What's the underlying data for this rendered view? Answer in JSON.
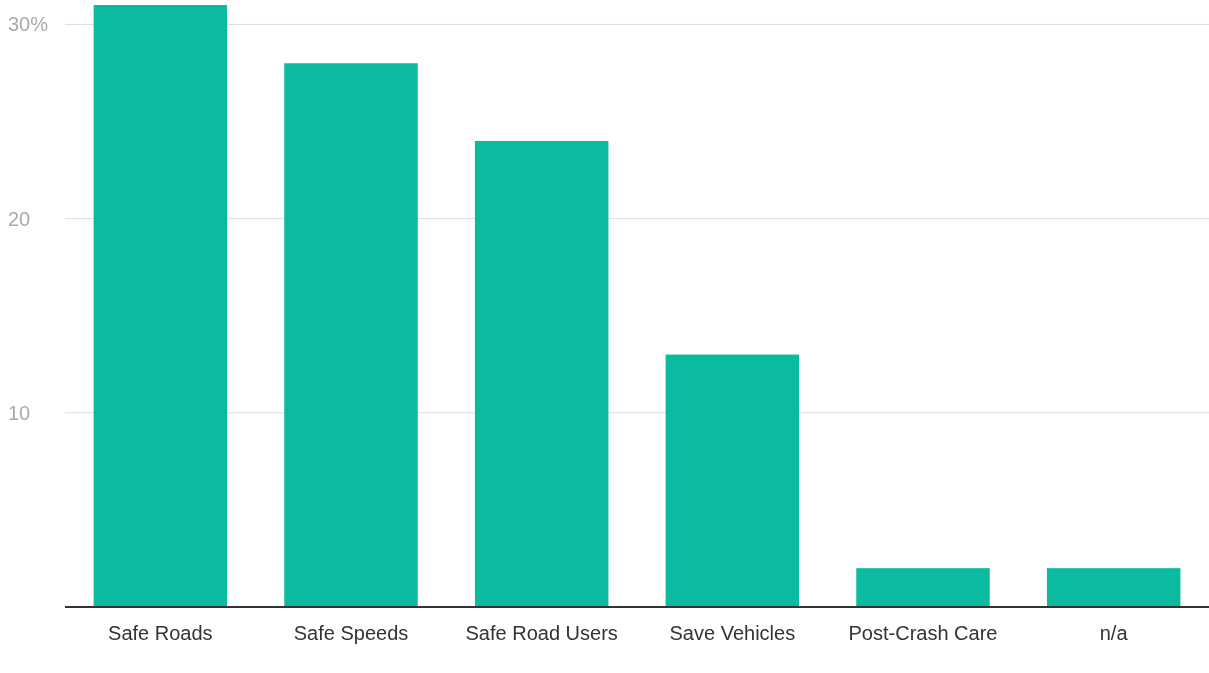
{
  "chart_data": {
    "type": "bar",
    "categories": [
      "Safe Roads",
      "Safe Speeds",
      "Safe Road Users",
      "Save Vehicles",
      "Post-Crash Care",
      "n/a"
    ],
    "values": [
      31,
      28,
      24,
      13,
      2,
      2
    ],
    "color": "#0abb9f",
    "ylim": [
      0,
      31
    ],
    "yticks": [
      10,
      20,
      {
        "value": 30,
        "label": "30%"
      }
    ],
    "grid": "y"
  }
}
